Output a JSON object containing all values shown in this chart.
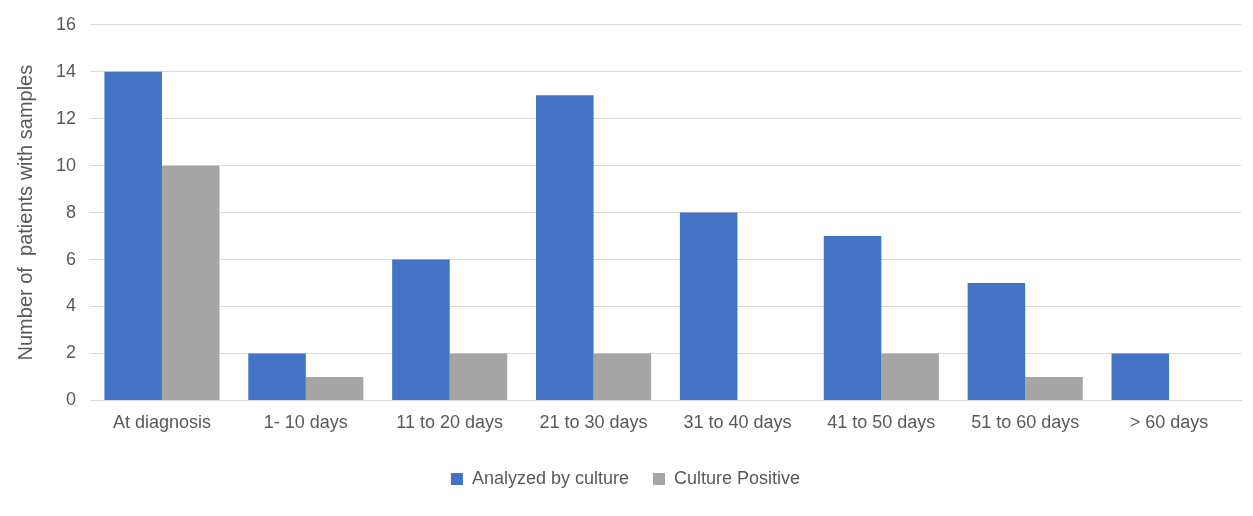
{
  "chart_data": {
    "type": "bar",
    "ylabel": "Number of  patients with samples",
    "categories": [
      "At diagnosis",
      "1- 10 days",
      "11 to 20 days",
      "21 to 30 days",
      "31 to 40 days",
      "41 to 50 days",
      "51 to 60 days",
      "> 60 days"
    ],
    "series": [
      {
        "name": "Analyzed by culture",
        "color": "#4472c4",
        "values": [
          14,
          2,
          6,
          13,
          8,
          7,
          5,
          2
        ]
      },
      {
        "name": "Culture Positive",
        "color": "#a5a5a5",
        "values": [
          10,
          1,
          2,
          2,
          0,
          2,
          1,
          0
        ]
      }
    ],
    "ylim": [
      0,
      16
    ],
    "yticks": [
      0,
      2,
      4,
      6,
      8,
      10,
      12,
      14,
      16
    ],
    "grid": "y",
    "legend": "bottom"
  }
}
